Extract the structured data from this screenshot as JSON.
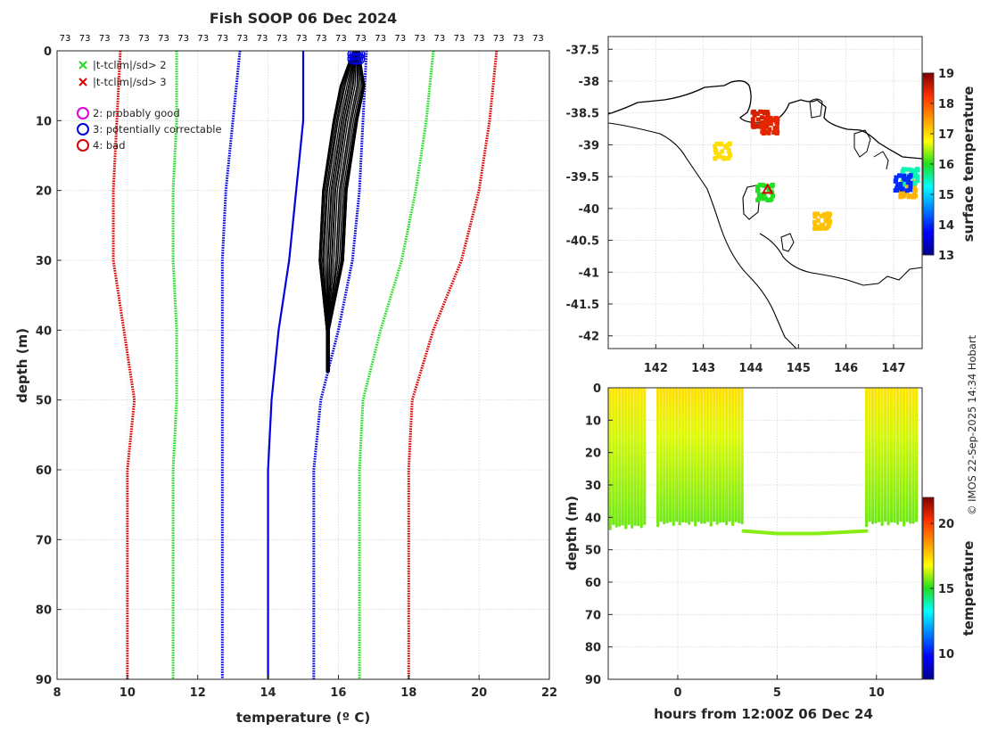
{
  "copyright": "© IMOS 22-Sep-2025 14:34 Hobart",
  "chart_data": [
    {
      "type": "line",
      "title": "Fish SOOP 06 Dec 2024",
      "xlabel": "temperature (º C)",
      "ylabel": "depth (m)",
      "xlim": [
        8,
        22
      ],
      "ylim": [
        90,
        0
      ],
      "xticks": [
        "8",
        "10",
        "12",
        "14",
        "16",
        "18",
        "20",
        "22"
      ],
      "yticks": [
        "0",
        "10",
        "20",
        "30",
        "40",
        "50",
        "60",
        "70",
        "80",
        "90"
      ],
      "profile_count_label": "73",
      "profile_count_repeats": 25,
      "legend": [
        {
          "marker": "cross",
          "color": "#22dd22",
          "label": "|t-tclim|/sd> 2"
        },
        {
          "marker": "cross",
          "color": "#dd0000",
          "label": "|t-tclim|/sd> 3"
        },
        {
          "marker": "circle",
          "color": "#dd00dd",
          "label": "2: probably good"
        },
        {
          "marker": "circle",
          "color": "#0000dd",
          "label": "3: potentially correctable"
        },
        {
          "marker": "circle",
          "color": "#dd0000",
          "label": "4: bad"
        }
      ],
      "series": [
        {
          "name": "clim -3sd",
          "color": "#dd0000",
          "style": "dotted",
          "depth": [
            0,
            10,
            20,
            30,
            40,
            50,
            60,
            90
          ],
          "temp": [
            9.8,
            9.7,
            9.6,
            9.6,
            9.9,
            10.2,
            10.0,
            10.0
          ]
        },
        {
          "name": "clim -2sd",
          "color": "#22dd22",
          "style": "dotted",
          "depth": [
            0,
            10,
            20,
            30,
            40,
            50,
            60,
            90
          ],
          "temp": [
            11.4,
            11.4,
            11.3,
            11.3,
            11.4,
            11.4,
            11.3,
            11.3
          ]
        },
        {
          "name": "clim -1sd",
          "color": "#0000dd",
          "style": "dotted",
          "depth": [
            0,
            10,
            20,
            30,
            40,
            50,
            60,
            90
          ],
          "temp": [
            13.2,
            13.0,
            12.8,
            12.7,
            12.7,
            12.7,
            12.7,
            12.7
          ]
        },
        {
          "name": "clim mean",
          "color": "#0000dd",
          "style": "solid",
          "depth": [
            0,
            10,
            20,
            30,
            40,
            50,
            60,
            90
          ],
          "temp": [
            15.0,
            15.0,
            14.8,
            14.6,
            14.3,
            14.1,
            14.0,
            14.0
          ]
        },
        {
          "name": "clim +1sd",
          "color": "#0000dd",
          "style": "dotted",
          "depth": [
            0,
            10,
            20,
            30,
            40,
            50,
            60,
            90
          ],
          "temp": [
            16.8,
            16.7,
            16.6,
            16.4,
            16.0,
            15.5,
            15.3,
            15.3
          ]
        },
        {
          "name": "clim +2sd",
          "color": "#22dd22",
          "style": "dotted",
          "depth": [
            0,
            10,
            20,
            30,
            40,
            50,
            60,
            90
          ],
          "temp": [
            18.7,
            18.5,
            18.2,
            17.8,
            17.2,
            16.7,
            16.6,
            16.6
          ]
        },
        {
          "name": "clim +3sd",
          "color": "#dd0000",
          "style": "dotted",
          "depth": [
            0,
            10,
            20,
            30,
            40,
            50,
            60,
            90
          ],
          "temp": [
            20.5,
            20.3,
            20.0,
            19.5,
            18.7,
            18.1,
            18.0,
            18.0
          ]
        },
        {
          "name": "profiles",
          "color": "#000000",
          "style": "solid",
          "depth": [
            0,
            5,
            10,
            20,
            30,
            40,
            46
          ],
          "temp": [
            16.5,
            16.4,
            16.2,
            15.9,
            15.8,
            15.7,
            15.7
          ]
        }
      ],
      "surface_flags": [
        {
          "temp": 16.5,
          "depth": 0.5,
          "color": "#0000dd"
        }
      ]
    },
    {
      "type": "scatter",
      "title": "",
      "xlabel": "",
      "ylabel": "",
      "xlim": [
        141,
        147.6
      ],
      "ylim": [
        -42.2,
        -37.3
      ],
      "xticks": [
        "142",
        "143",
        "144",
        "145",
        "146",
        "147"
      ],
      "yticks": [
        "-37.5",
        "-38",
        "-38.5",
        "-39",
        "-39.5",
        "-40",
        "-40.5",
        "-41",
        "-41.5",
        "-42"
      ],
      "colorbar_label": "surface temperature",
      "colorbar_range": [
        13,
        19
      ],
      "colorbar_ticks": [
        "13",
        "14",
        "15",
        "16",
        "17",
        "18",
        "19"
      ],
      "clusters": [
        {
          "lon": 144.2,
          "lat": -38.6,
          "temp": 18.5
        },
        {
          "lon": 144.4,
          "lat": -38.7,
          "temp": 18.4
        },
        {
          "lon": 145.5,
          "lat": -40.2,
          "temp": 17.2
        },
        {
          "lon": 147.3,
          "lat": -39.7,
          "temp": 17.3
        },
        {
          "lon": 147.35,
          "lat": -39.5,
          "temp": 15.5
        },
        {
          "lon": 147.2,
          "lat": -39.6,
          "temp": 14.0
        },
        {
          "lon": 144.3,
          "lat": -39.75,
          "temp": 16.0
        },
        {
          "lon": 143.4,
          "lat": -39.1,
          "temp": 17.0
        }
      ],
      "highlight": {
        "lon": 144.35,
        "lat": -39.7,
        "color": "#dd0000"
      }
    },
    {
      "type": "scatter",
      "title": "",
      "xlabel": "hours from 12:00Z 06 Dec 24",
      "ylabel": "depth (m)",
      "xlim": [
        -3.5,
        12.3
      ],
      "ylim": [
        90,
        0
      ],
      "xticks": [
        "0",
        "5",
        "10"
      ],
      "yticks": [
        "0",
        "10",
        "20",
        "30",
        "40",
        "50",
        "60",
        "70",
        "80",
        "90"
      ],
      "colorbar_label": "temperature",
      "colorbar_range": [
        8,
        22
      ],
      "colorbar_ticks": [
        "10",
        "15",
        "20"
      ],
      "segments": [
        {
          "t_start": -3.4,
          "t_end": -1.6,
          "max_depth": 44,
          "surface_temp": 17.2,
          "bottom_temp": 15.6
        },
        {
          "t_start": -1.0,
          "t_end": 3.3,
          "max_depth": 43,
          "surface_temp": 17.3,
          "bottom_temp": 15.6
        },
        {
          "t_start": 9.5,
          "t_end": 12.0,
          "max_depth": 43,
          "surface_temp": 17.2,
          "bottom_temp": 15.6
        }
      ],
      "tow": {
        "t": [
          3.3,
          5.0,
          7.0,
          9.5
        ],
        "depth": [
          44.2,
          45.0,
          45.0,
          44.2
        ],
        "temp": 15.8
      }
    }
  ]
}
